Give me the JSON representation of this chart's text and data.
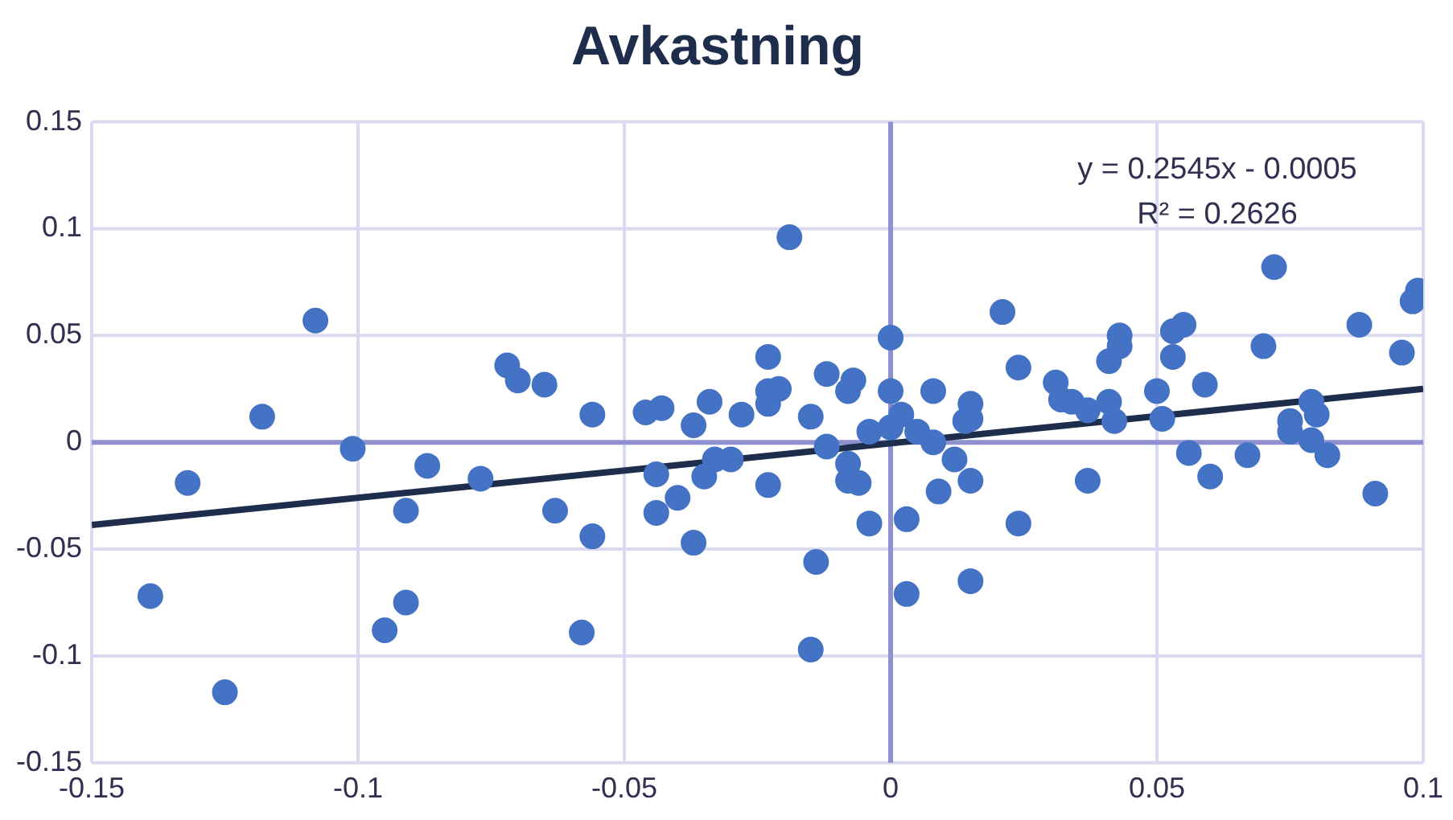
{
  "chart_data": {
    "type": "scatter",
    "title": "Avkastning",
    "xlim": [
      -0.15,
      0.1
    ],
    "xticks": [
      -0.15,
      -0.1,
      -0.05,
      0,
      0.05,
      0.1
    ],
    "ylim": [
      -0.15,
      0.15
    ],
    "yticks": [
      -0.15,
      -0.1,
      -0.05,
      0,
      0.05,
      0.1,
      0.15
    ],
    "grid": true,
    "legend": false,
    "marker": "circle",
    "annotations": [
      "y = 0.2545x - 0.0005",
      "R² = 0.2626"
    ],
    "series": [
      {
        "color": "#4472c4",
        "x": [
          -0.139,
          -0.132,
          -0.118,
          -0.108,
          -0.101,
          -0.125,
          -0.095,
          -0.091,
          -0.091,
          -0.087,
          -0.077,
          -0.072,
          -0.07,
          -0.065,
          -0.063,
          -0.058,
          -0.056,
          -0.056,
          -0.046,
          -0.043,
          -0.044,
          -0.044,
          -0.04,
          -0.037,
          -0.037,
          -0.035,
          -0.034,
          -0.033,
          -0.03,
          -0.028,
          -0.023,
          -0.023,
          -0.023,
          -0.023,
          -0.021,
          -0.019,
          -0.015,
          -0.014,
          -0.015,
          -0.012,
          -0.012,
          -0.008,
          -0.007,
          -0.008,
          -0.008,
          -0.006,
          -0.004,
          0,
          0,
          0,
          -0.004,
          0.002,
          0.003,
          0.003,
          0.005,
          0.008,
          0.008,
          0.009,
          0.012,
          0.014,
          0.015,
          0.015,
          0.015,
          0.015,
          0.021,
          0.024,
          0.024,
          0.031,
          0.032,
          0.034,
          0.037,
          0.037,
          0.041,
          0.041,
          0.042,
          0.043,
          0.043,
          0.05,
          0.051,
          0.053,
          0.053,
          0.055,
          0.056,
          0.059,
          0.06,
          0.067,
          0.07,
          0.072,
          0.075,
          0.075,
          0.079,
          0.079,
          0.08,
          0.082,
          0.088,
          0.091,
          0.096,
          0.098,
          0.099
        ],
        "values": [
          -0.072,
          -0.019,
          0.012,
          0.057,
          -0.003,
          -0.117,
          -0.088,
          -0.075,
          -0.032,
          -0.011,
          -0.017,
          0.036,
          0.029,
          0.027,
          -0.032,
          -0.089,
          0.013,
          -0.044,
          0.014,
          0.016,
          -0.015,
          -0.033,
          -0.026,
          -0.047,
          0.008,
          -0.016,
          0.019,
          -0.008,
          -0.008,
          0.013,
          0.04,
          0.024,
          -0.02,
          0.018,
          0.025,
          0.096,
          0.012,
          -0.056,
          -0.097,
          0.032,
          -0.002,
          0.024,
          0.029,
          -0.01,
          -0.018,
          -0.019,
          -0.038,
          0.049,
          0.024,
          0.007,
          0.005,
          0.013,
          -0.036,
          -0.071,
          0.005,
          0.024,
          0,
          -0.023,
          -0.008,
          0.01,
          0.018,
          -0.018,
          -0.065,
          0.011,
          0.061,
          0.035,
          -0.038,
          0.028,
          0.02,
          0.019,
          0.015,
          -0.018,
          0.038,
          0.019,
          0.01,
          0.045,
          0.05,
          0.024,
          0.011,
          0.04,
          0.052,
          0.055,
          -0.005,
          0.027,
          -0.016,
          -0.006,
          0.045,
          0.082,
          0.01,
          0.005,
          0.019,
          0.001,
          0.013,
          -0.006,
          0.055,
          -0.024,
          0.042,
          0.066,
          0.071
        ]
      },
      {
        "type": "line",
        "marker": "none",
        "color": "#1f2d4d",
        "x": [
          -0.15,
          0.1
        ],
        "values": [
          -0.0387,
          0.025
        ]
      }
    ]
  }
}
